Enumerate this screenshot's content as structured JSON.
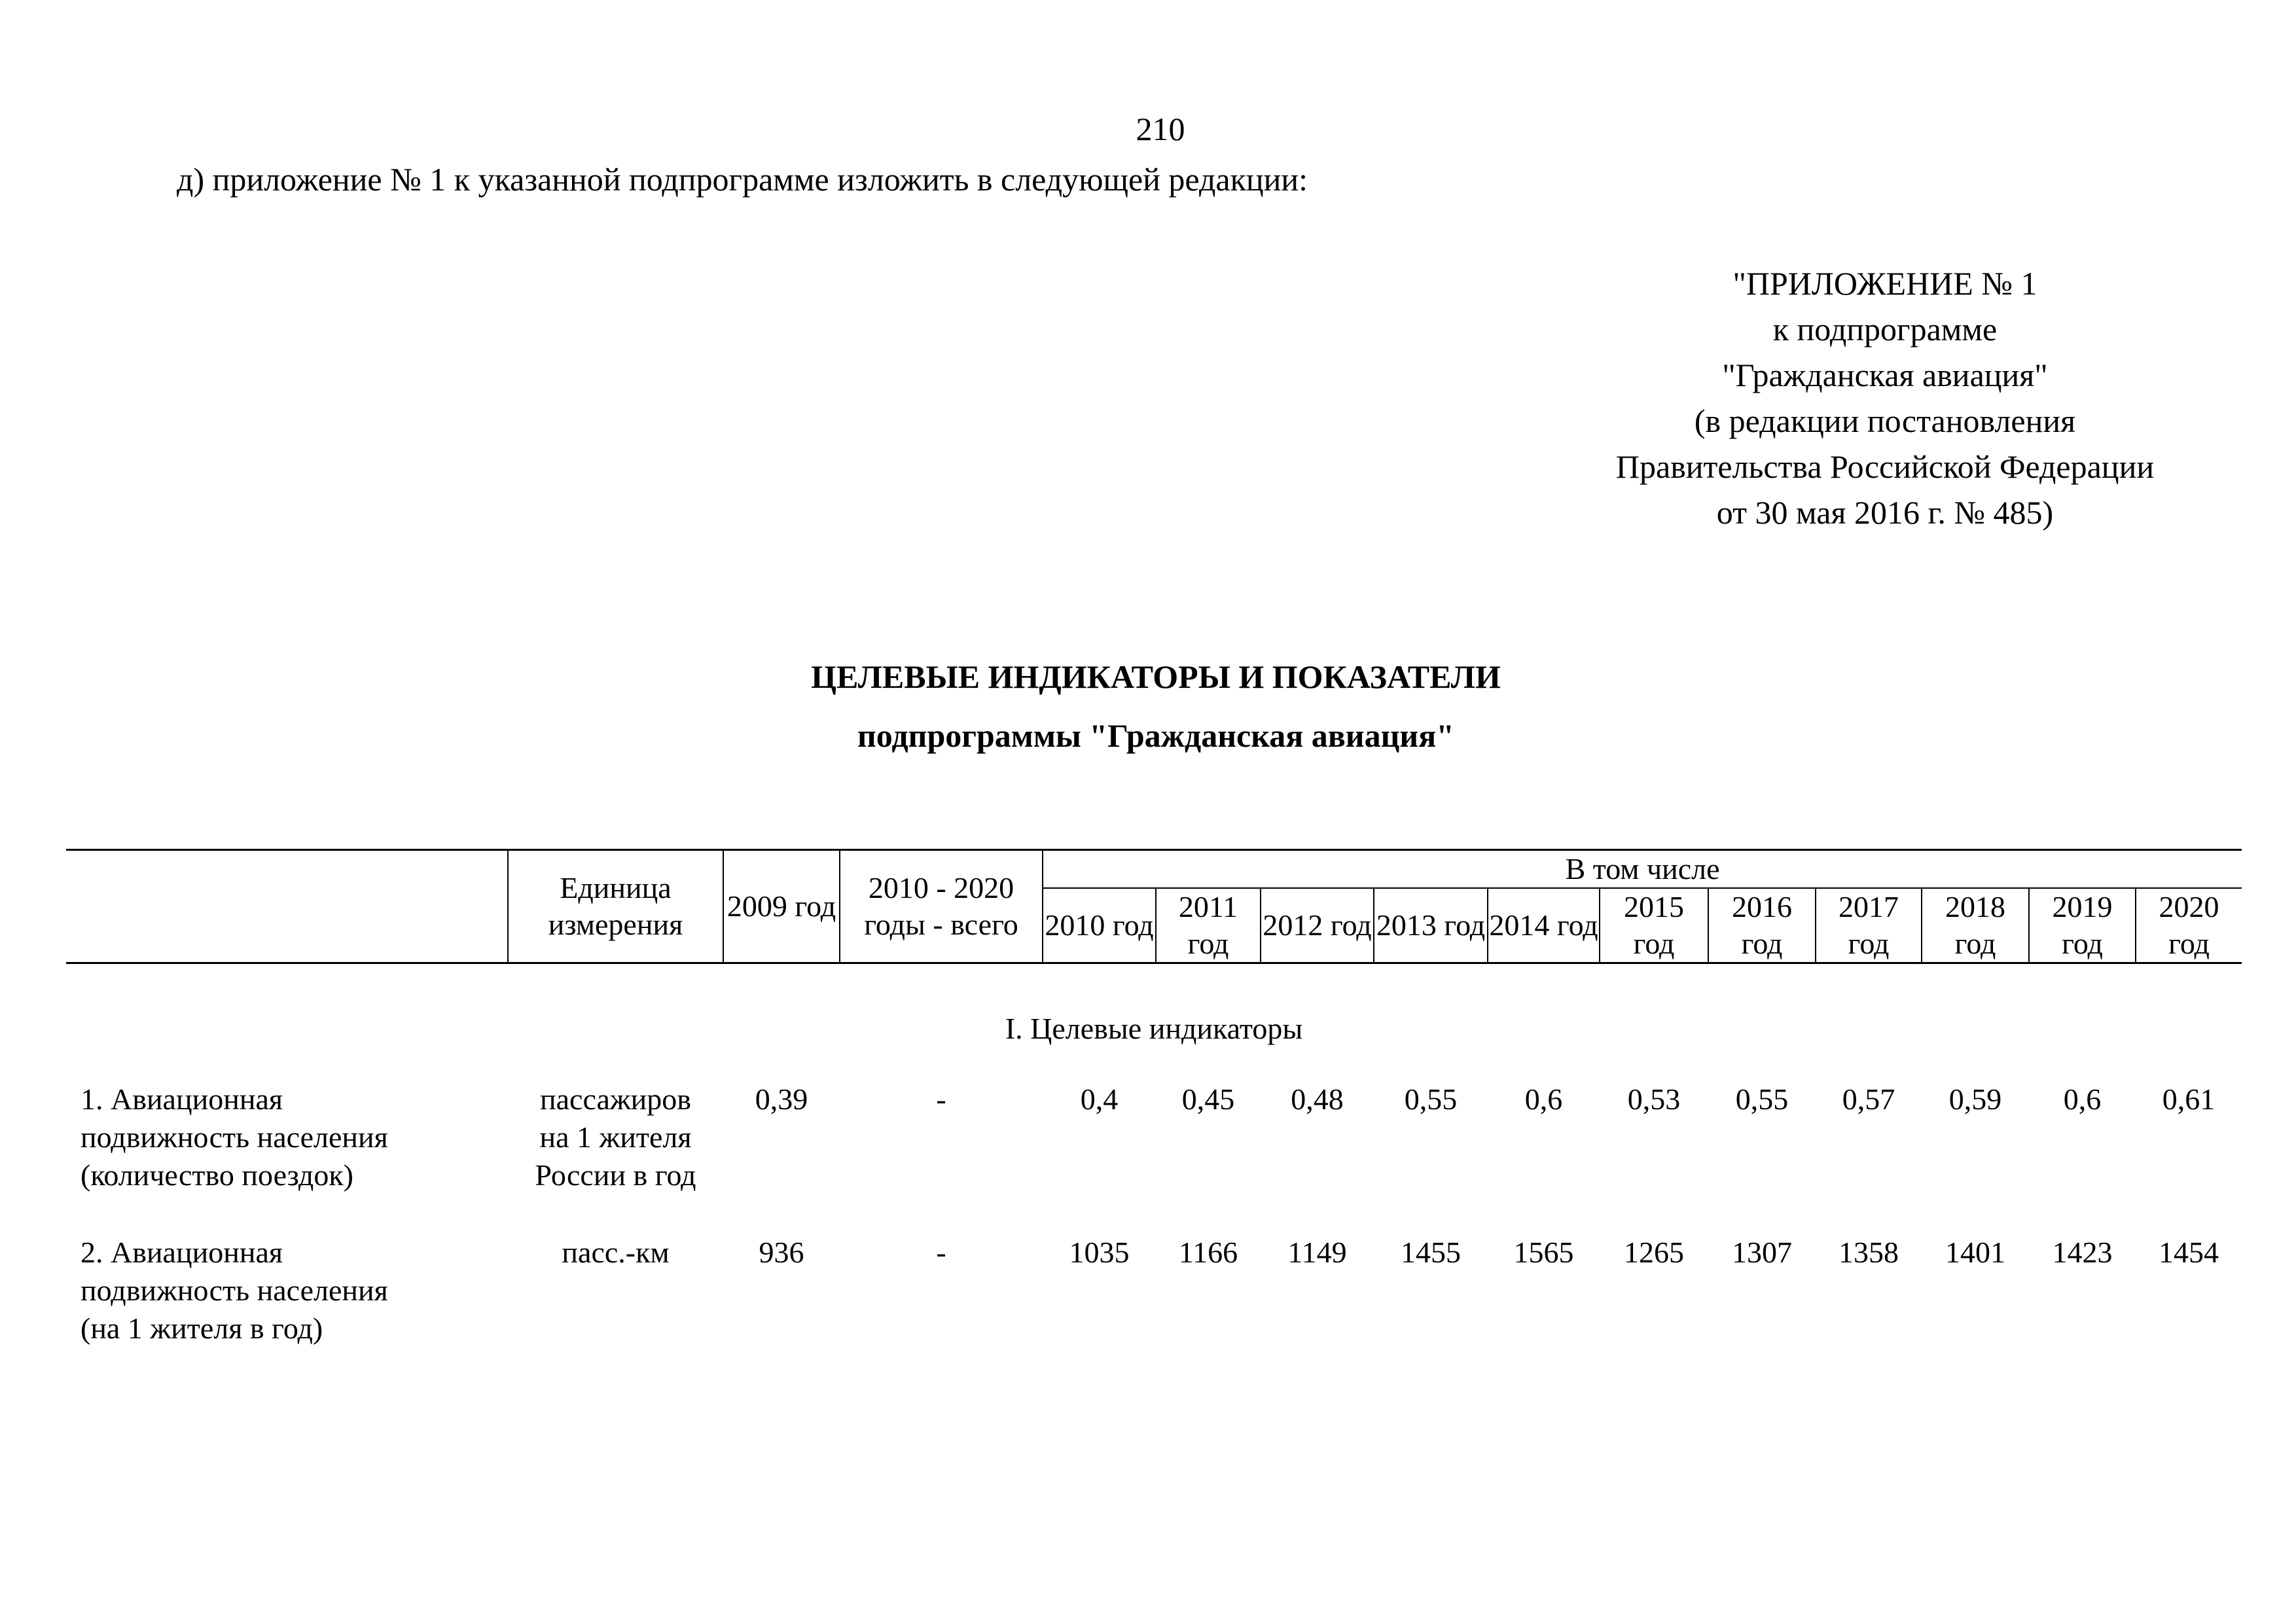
{
  "page_number": "210",
  "intro": "д) приложение № 1 к указанной подпрограмме изложить в следующей редакции:",
  "appendix": [
    "\"ПРИЛОЖЕНИЕ № 1",
    "к подпрограмме",
    "\"Гражданская авиация\"",
    "(в редакции постановления",
    "Правительства Российской Федерации",
    "от 30 мая 2016 г.  №  485)"
  ],
  "title": "ЦЕЛЕВЫЕ ИНДИКАТОРЫ И ПОКАЗАТЕЛИ",
  "subtitle": "подпрограммы \"Гражданская авиация\"",
  "table": {
    "headers": {
      "unit": "Единица измерения",
      "base_year": "2009 год",
      "total": "2010 - 2020 годы - всего",
      "including": "В том числе",
      "years": [
        "2010 год",
        "2011 год",
        "2012 год",
        "2013 год",
        "2014 год",
        "2015 год",
        "2016 год",
        "2017 год",
        "2018 год",
        "2019 год",
        "2020 год"
      ]
    },
    "section": "I. Целевые индикаторы",
    "rows": [
      {
        "name": [
          "1. Авиационная",
          "подвижность населения",
          "(количество поездок)"
        ],
        "unit": [
          "пассажиров",
          "на 1 жителя",
          "России в год"
        ],
        "base": "0,39",
        "total": "-",
        "values": [
          "0,4",
          "0,45",
          "0,48",
          "0,55",
          "0,6",
          "0,53",
          "0,55",
          "0,57",
          "0,59",
          "0,6",
          "0,61"
        ]
      },
      {
        "name": [
          "2. Авиационная",
          "подвижность населения",
          "(на 1 жителя в год)"
        ],
        "unit": [
          "пасс.-км"
        ],
        "base": "936",
        "total": "-",
        "values": [
          "1035",
          "1166",
          "1149",
          "1455",
          "1565",
          "1265",
          "1307",
          "1358",
          "1401",
          "1423",
          "1454"
        ]
      }
    ]
  }
}
